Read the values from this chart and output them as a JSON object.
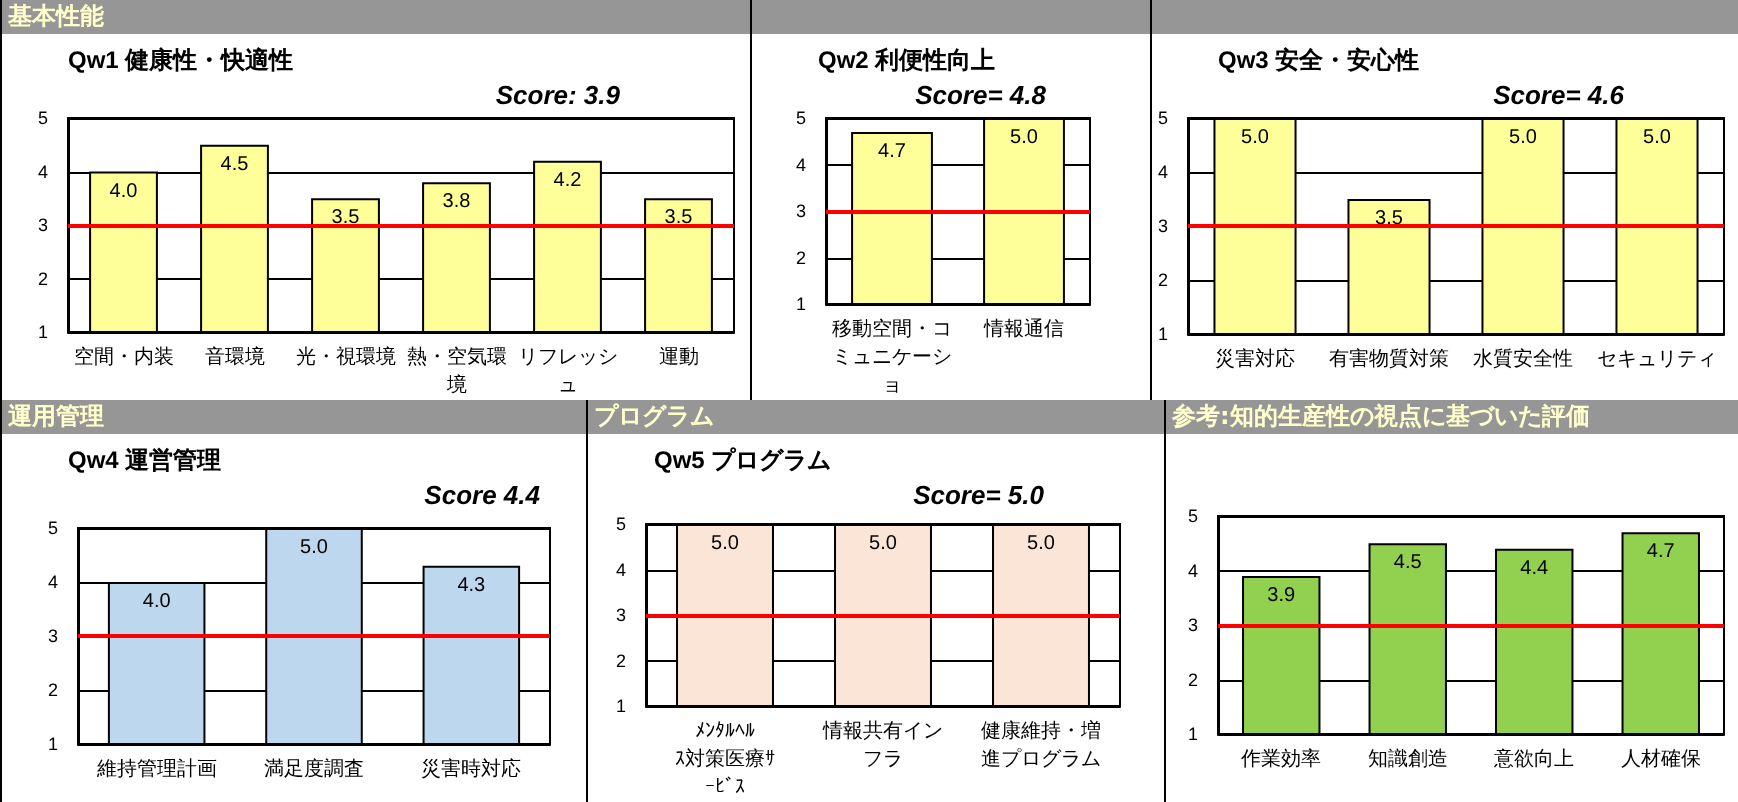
{
  "chart_data": [
    {
      "type": "bar",
      "title": "Qw1 健康性・快適性",
      "subtitle": "Score: 3.9",
      "annotations": [
        "基本性能"
      ],
      "categories": [
        "空間・内装",
        "音環境",
        "光・視環境",
        "熱・空気環境",
        "リフレッシュ",
        "運動"
      ],
      "series": [
        {
          "color": "#ffff99",
          "values": [
            4.0,
            4.5,
            3.5,
            3.8,
            4.2,
            3.5
          ],
          "value_labels": [
            "4.0",
            "4.5",
            "3.5",
            "3.8",
            "4.2",
            "3.5"
          ]
        }
      ],
      "ylim": [
        1,
        5
      ],
      "yticks": [
        1,
        2,
        3,
        4,
        5
      ],
      "grid": "y",
      "ref_lines": [
        {
          "axis": "y",
          "value": 3,
          "color": "#ff0000"
        }
      ]
    },
    {
      "type": "bar",
      "title": "Qw2 利便性向上",
      "subtitle": "Score= 4.8",
      "categories": [
        "移動空間・コミュニケーショ",
        "情報通信"
      ],
      "series": [
        {
          "color": "#ffff99",
          "values": [
            4.7,
            5.0
          ],
          "value_labels": [
            "4.7",
            "5.0"
          ]
        }
      ],
      "ylim": [
        1,
        5
      ],
      "yticks": [
        1,
        2,
        3,
        4,
        5
      ],
      "grid": "y",
      "ref_lines": [
        {
          "axis": "y",
          "value": 3,
          "color": "#ff0000"
        }
      ]
    },
    {
      "type": "bar",
      "title": "Qw3 安全・安心性",
      "subtitle": "Score= 4.6",
      "categories": [
        "災害対応",
        "有害物質対策",
        "水質安全性",
        "セキュリティ"
      ],
      "series": [
        {
          "color": "#ffff99",
          "values": [
            5.0,
            3.5,
            5.0,
            5.0
          ],
          "value_labels": [
            "5.0",
            "3.5",
            "5.0",
            "5.0"
          ]
        }
      ],
      "ylim": [
        1,
        5
      ],
      "yticks": [
        1,
        2,
        3,
        4,
        5
      ],
      "grid": "y",
      "ref_lines": [
        {
          "axis": "y",
          "value": 3,
          "color": "#ff0000"
        }
      ]
    },
    {
      "type": "bar",
      "title": "Qw4 運営管理",
      "subtitle": "Score 4.4",
      "annotations": [
        "運用管理"
      ],
      "categories": [
        "維持管理計画",
        "満足度調査",
        "災害時対応"
      ],
      "series": [
        {
          "color": "#bdd7ee",
          "values": [
            4.0,
            5.0,
            4.3
          ],
          "value_labels": [
            "4.0",
            "5.0",
            "4.3"
          ]
        }
      ],
      "ylim": [
        1,
        5
      ],
      "yticks": [
        1,
        2,
        3,
        4,
        5
      ],
      "grid": "y",
      "ref_lines": [
        {
          "axis": "y",
          "value": 3,
          "color": "#ff0000"
        }
      ]
    },
    {
      "type": "bar",
      "title": "Qw5 プログラム",
      "subtitle": "Score= 5.0",
      "annotations": [
        "プログラム"
      ],
      "categories": [
        "ﾒﾝﾀﾙﾍﾙｽ対策医療ｻｰﾋﾞｽ",
        "情報共有インフラ",
        "健康維持・増進プログラム"
      ],
      "series": [
        {
          "color": "#fbe5d6",
          "values": [
            5.0,
            5.0,
            5.0
          ],
          "value_labels": [
            "5.0",
            "5.0",
            "5.0"
          ]
        }
      ],
      "ylim": [
        1,
        5
      ],
      "yticks": [
        1,
        2,
        3,
        4,
        5
      ],
      "grid": "y",
      "ref_lines": [
        {
          "axis": "y",
          "value": 3,
          "color": "#ff0000"
        }
      ]
    },
    {
      "type": "bar",
      "annotations": [
        "参考:知的生産性の視点に基づいた評価"
      ],
      "categories": [
        "作業効率",
        "知識創造",
        "意欲向上",
        "人材確保"
      ],
      "series": [
        {
          "color": "#92d050",
          "values": [
            3.9,
            4.5,
            4.4,
            4.7
          ],
          "value_labels": [
            "3.9",
            "4.5",
            "4.4",
            "4.7"
          ]
        }
      ],
      "ylim": [
        1,
        5
      ],
      "yticks": [
        1,
        2,
        3,
        4,
        5
      ],
      "grid": "y",
      "ref_lines": [
        {
          "axis": "y",
          "value": 3,
          "color": "#ff0000"
        }
      ]
    }
  ]
}
